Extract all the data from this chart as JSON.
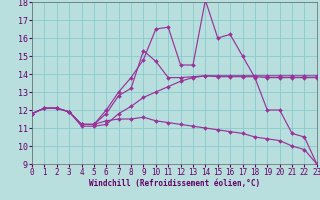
{
  "xlabel": "Windchill (Refroidissement éolien,°C)",
  "xlim": [
    0,
    23
  ],
  "ylim": [
    9,
    18
  ],
  "yticks": [
    9,
    10,
    11,
    12,
    13,
    14,
    15,
    16,
    17,
    18
  ],
  "xticks": [
    0,
    1,
    2,
    3,
    4,
    5,
    6,
    7,
    8,
    9,
    10,
    11,
    12,
    13,
    14,
    15,
    16,
    17,
    18,
    19,
    20,
    21,
    22,
    23
  ],
  "background_color": "#b8dede",
  "line_color": "#993399",
  "grid_color": "#88cccc",
  "lines": [
    {
      "x": [
        0,
        1,
        2,
        3,
        4,
        5,
        6,
        7,
        8,
        9,
        10,
        11,
        12,
        13,
        14,
        15,
        16,
        17,
        18,
        19,
        20,
        21,
        22,
        23
      ],
      "y": [
        11.8,
        12.1,
        12.1,
        11.9,
        11.2,
        11.2,
        12.0,
        13.0,
        13.8,
        14.8,
        16.5,
        16.6,
        14.5,
        14.5,
        18.1,
        16.0,
        16.2,
        15.0,
        13.8,
        12.0,
        12.0,
        10.7,
        10.5,
        9.0
      ]
    },
    {
      "x": [
        0,
        1,
        2,
        3,
        4,
        5,
        6,
        7,
        8,
        9,
        10,
        11,
        12,
        13,
        14,
        15,
        16,
        17,
        18,
        19,
        20,
        21,
        22,
        23
      ],
      "y": [
        11.8,
        12.1,
        12.1,
        11.9,
        11.2,
        11.2,
        11.8,
        12.8,
        13.2,
        15.3,
        14.7,
        13.8,
        13.8,
        13.85,
        13.9,
        13.85,
        13.85,
        13.85,
        13.85,
        13.8,
        13.8,
        13.8,
        13.8,
        13.8
      ]
    },
    {
      "x": [
        0,
        1,
        2,
        3,
        4,
        5,
        6,
        7,
        8,
        9,
        10,
        11,
        12,
        13,
        14,
        15,
        16,
        17,
        18,
        19,
        20,
        21,
        22,
        23
      ],
      "y": [
        11.8,
        12.1,
        12.1,
        11.9,
        11.1,
        11.1,
        11.2,
        11.8,
        12.2,
        12.7,
        13.0,
        13.3,
        13.6,
        13.8,
        13.9,
        13.9,
        13.9,
        13.9,
        13.9,
        13.9,
        13.9,
        13.9,
        13.9,
        13.9
      ]
    },
    {
      "x": [
        0,
        1,
        2,
        3,
        4,
        5,
        6,
        7,
        8,
        9,
        10,
        11,
        12,
        13,
        14,
        15,
        16,
        17,
        18,
        19,
        20,
        21,
        22,
        23
      ],
      "y": [
        11.8,
        12.1,
        12.1,
        11.9,
        11.2,
        11.2,
        11.4,
        11.5,
        11.5,
        11.6,
        11.4,
        11.3,
        11.2,
        11.1,
        11.0,
        10.9,
        10.8,
        10.7,
        10.5,
        10.4,
        10.3,
        10.0,
        9.8,
        9.0
      ]
    }
  ]
}
